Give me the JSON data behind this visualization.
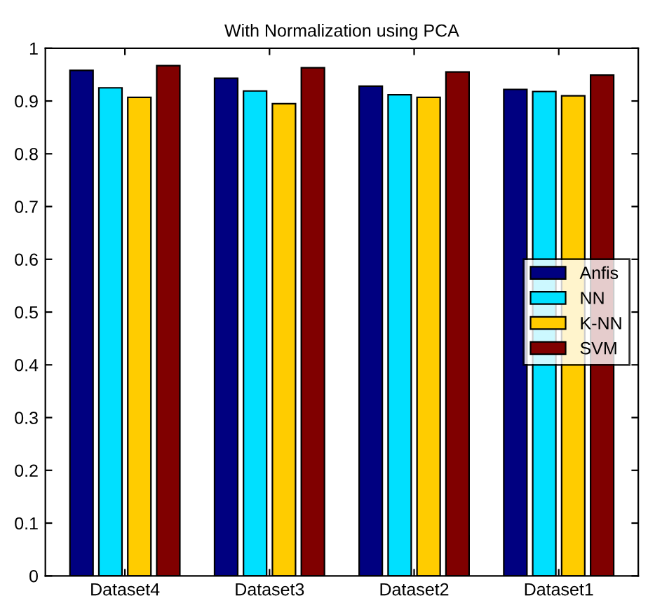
{
  "chart_data": {
    "type": "bar",
    "title": "With Normalization using PCA",
    "categories": [
      "Dataset4",
      "Dataset3",
      "Dataset2",
      "Dataset1"
    ],
    "series": [
      {
        "name": "Anfis",
        "color": "#000080",
        "values": [
          0.958,
          0.943,
          0.928,
          0.922
        ]
      },
      {
        "name": "NN",
        "color": "#00e0ff",
        "values": [
          0.925,
          0.919,
          0.912,
          0.918
        ]
      },
      {
        "name": "K-NN",
        "color": "#ffcc00",
        "values": [
          0.907,
          0.895,
          0.907,
          0.91
        ]
      },
      {
        "name": "SVM",
        "color": "#800000",
        "values": [
          0.967,
          0.963,
          0.955,
          0.949
        ]
      }
    ],
    "ylim": [
      0,
      1
    ],
    "yticks": [
      0,
      0.1,
      0.2,
      0.3,
      0.4,
      0.5,
      0.6,
      0.7,
      0.8,
      0.9,
      1
    ],
    "legend": "center right",
    "grid": false
  }
}
